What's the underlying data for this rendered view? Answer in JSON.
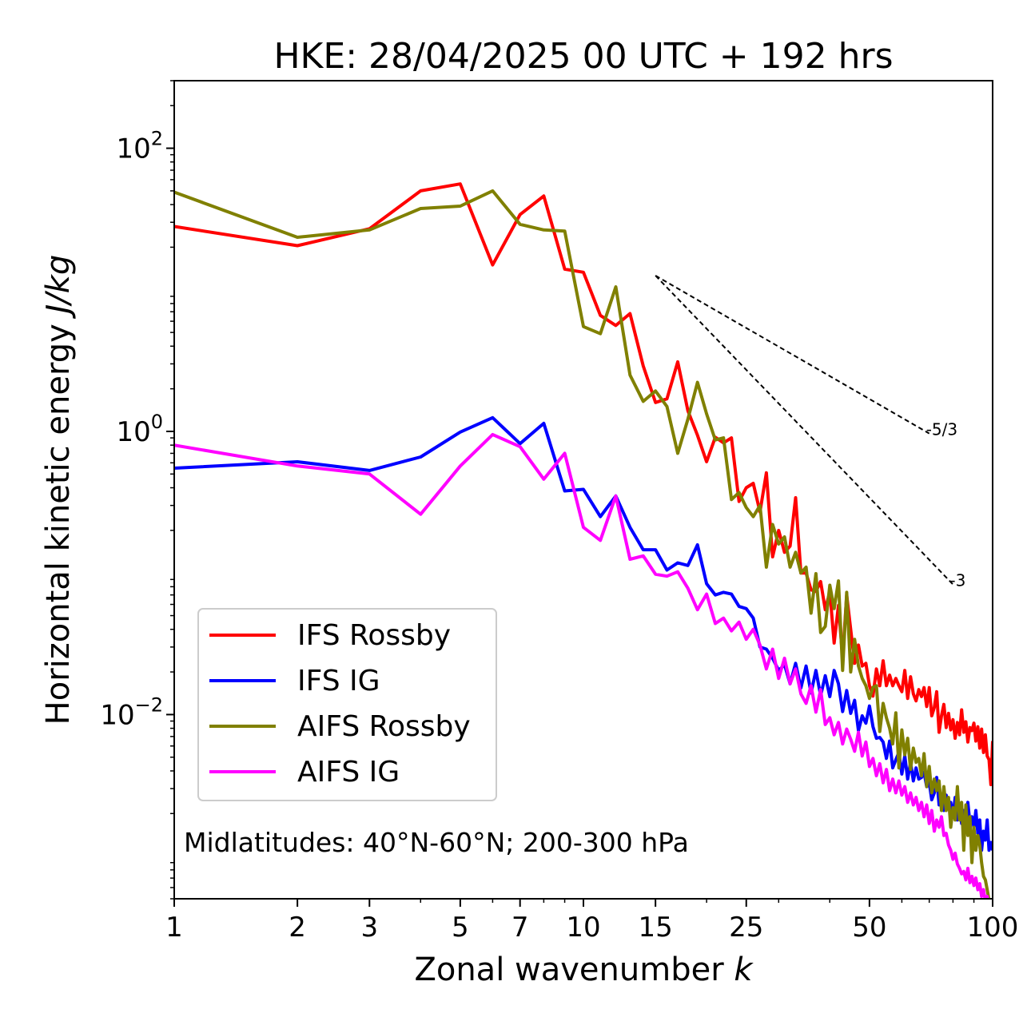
{
  "chart_data": {
    "type": "line",
    "title": "HKE: 28/04/2025 00 UTC + 192 hrs",
    "xlabel": "Zonal wavenumber",
    "xlabel_italic": "k",
    "ylabel": "Horizontal kinetic energy",
    "ylabel_italic": "J/kg",
    "xscale": "log",
    "yscale": "log",
    "xlim": [
      1,
      100
    ],
    "ylim": [
      0.0005,
      300
    ],
    "x_ticks": [
      1,
      2,
      3,
      5,
      7,
      10,
      15,
      25,
      50,
      100
    ],
    "x_tick_labels": [
      "1",
      "2",
      "3",
      "5",
      "7",
      "10",
      "15",
      "25",
      "50",
      "100"
    ],
    "y_ticks": [
      {
        "value": 100,
        "base": "10",
        "exp": "2"
      },
      {
        "value": 1,
        "base": "10",
        "exp": "0"
      },
      {
        "value": 0.01,
        "base": "10",
        "exp": "−2"
      }
    ],
    "grid": false,
    "legend_position": "lower-left",
    "annotation": "Midlatitudes: 40°N-60°N; 200-300 hPa",
    "reference_lines": [
      {
        "label": "-5/3",
        "slope": -1.6667,
        "x": [
          15,
          70
        ],
        "y_start": 12.6
      },
      {
        "label": "-3",
        "slope": -3,
        "x": [
          15,
          80
        ],
        "y_start": 12.6
      }
    ],
    "series": [
      {
        "name": "IFS Rossby",
        "color": "#ff0000",
        "x": [
          1,
          2,
          3,
          4,
          5,
          6,
          7,
          8,
          9,
          10,
          11,
          12,
          13,
          14,
          15,
          16,
          17,
          18,
          19,
          20,
          21,
          22,
          23,
          24,
          25,
          26,
          27,
          28,
          29,
          30,
          31,
          32,
          33,
          34,
          35,
          36,
          37,
          38,
          39,
          40,
          41,
          42,
          43,
          44,
          45,
          46,
          47,
          48,
          49,
          50,
          51,
          52,
          53,
          54,
          55,
          56,
          57,
          58,
          59,
          60,
          61,
          62,
          63,
          64,
          65,
          66,
          67,
          68,
          69,
          70,
          71,
          72,
          73,
          74,
          75,
          76,
          77,
          78,
          79,
          80,
          81,
          82,
          83,
          84,
          85,
          86,
          87,
          88,
          89,
          90,
          91,
          92,
          93,
          94,
          95,
          96,
          97,
          98,
          99,
          100
        ],
        "y": [
          28,
          20.5,
          27,
          50,
          56,
          15,
          34,
          46,
          14,
          13.3,
          6.6,
          5.6,
          6.8,
          2.9,
          1.6,
          1.7,
          3.1,
          1.4,
          0.94,
          0.61,
          0.91,
          0.83,
          0.9,
          0.32,
          0.4,
          0.43,
          0.27,
          0.51,
          0.13,
          0.2,
          0.14,
          0.155,
          0.34,
          0.1,
          0.1,
          0.076,
          0.074,
          0.087,
          0.055,
          0.074,
          0.032,
          0.059,
          0.025,
          0.07,
          0.04,
          0.023,
          0.031,
          0.022,
          0.023,
          0.016,
          0.0135,
          0.021,
          0.016,
          0.024,
          0.016,
          0.019,
          0.016,
          0.018,
          0.016,
          0.0145,
          0.0205,
          0.013,
          0.0185,
          0.014,
          0.0125,
          0.015,
          0.0134,
          0.0155,
          0.0114,
          0.0155,
          0.0098,
          0.0112,
          0.0145,
          0.0075,
          0.0098,
          0.0118,
          0.0081,
          0.0102,
          0.0078,
          0.0092,
          0.0068,
          0.0088,
          0.0072,
          0.0108,
          0.0075,
          0.0089,
          0.0064,
          0.0081,
          0.0077,
          0.0087,
          0.0065,
          0.0082,
          0.0058,
          0.0079,
          0.0054,
          0.0072,
          0.0051,
          0.0048,
          0.0032,
          0.0065
        ]
      },
      {
        "name": "IFS IG",
        "color": "#0000ff",
        "x": [
          1,
          2,
          3,
          4,
          5,
          6,
          7,
          8,
          9,
          10,
          11,
          12,
          13,
          14,
          15,
          16,
          17,
          18,
          19,
          20,
          21,
          22,
          23,
          24,
          25,
          26,
          27,
          28,
          29,
          30,
          31,
          32,
          33,
          34,
          35,
          36,
          37,
          38,
          39,
          40,
          41,
          42,
          43,
          44,
          45,
          46,
          47,
          48,
          49,
          50,
          51,
          52,
          53,
          54,
          55,
          56,
          57,
          58,
          59,
          60,
          61,
          62,
          63,
          64,
          65,
          66,
          67,
          68,
          69,
          70,
          71,
          72,
          73,
          74,
          75,
          76,
          77,
          78,
          79,
          80,
          81,
          82,
          83,
          84,
          85,
          86,
          87,
          88,
          89,
          90,
          91,
          92,
          93,
          94,
          95,
          96,
          97,
          98,
          99,
          100
        ],
        "y": [
          0.55,
          0.61,
          0.53,
          0.66,
          0.99,
          1.25,
          0.82,
          1.14,
          0.38,
          0.39,
          0.25,
          0.35,
          0.21,
          0.146,
          0.146,
          0.105,
          0.118,
          0.113,
          0.158,
          0.084,
          0.07,
          0.073,
          0.071,
          0.058,
          0.056,
          0.048,
          0.03,
          0.029,
          0.025,
          0.0205,
          0.0225,
          0.0165,
          0.023,
          0.0154,
          0.022,
          0.0142,
          0.0205,
          0.0136,
          0.0188,
          0.0134,
          0.0205,
          0.0165,
          0.0105,
          0.0148,
          0.0102,
          0.0126,
          0.0077,
          0.0098,
          0.0087,
          0.0115,
          0.0082,
          0.0068,
          0.0069,
          0.0064,
          0.0049,
          0.0065,
          0.0042,
          0.0048,
          0.0054,
          0.0038,
          0.0051,
          0.0035,
          0.0046,
          0.0034,
          0.0042,
          0.0035,
          0.0036,
          0.0039,
          0.0031,
          0.0033,
          0.0025,
          0.0028,
          0.0036,
          0.0023,
          0.0026,
          0.0021,
          0.0027,
          0.0022,
          0.0024,
          0.0019,
          0.0026,
          0.0018,
          0.0023,
          0.0017,
          0.0021,
          0.0019,
          0.0024,
          0.0017,
          0.0019,
          0.0016,
          0.0021,
          0.00145,
          0.0018,
          0.0011,
          0.0015,
          0.0013,
          0.0018,
          0.0011,
          0.00125,
          0.0011
        ]
      },
      {
        "name": "AIFS Rossby",
        "color": "#808000",
        "x": [
          1,
          2,
          3,
          4,
          5,
          6,
          7,
          8,
          9,
          10,
          11,
          12,
          13,
          14,
          15,
          16,
          17,
          18,
          19,
          20,
          21,
          22,
          23,
          24,
          25,
          26,
          27,
          28,
          29,
          30,
          31,
          32,
          33,
          34,
          35,
          36,
          37,
          38,
          39,
          40,
          41,
          42,
          43,
          44,
          45,
          46,
          47,
          48,
          49,
          50,
          51,
          52,
          53,
          54,
          55,
          56,
          57,
          58,
          59,
          60,
          61,
          62,
          63,
          64,
          65,
          66,
          67,
          68,
          69,
          70,
          71,
          72,
          73,
          74,
          75,
          76,
          77,
          78,
          79,
          80,
          81,
          82,
          83,
          84,
          85,
          86,
          87,
          88,
          89,
          90,
          91,
          92,
          93,
          94,
          95,
          96,
          97,
          98,
          99,
          100
        ],
        "y": [
          49,
          23.5,
          26.5,
          37.5,
          39,
          50,
          29,
          26.5,
          26,
          5.5,
          4.9,
          10.5,
          2.5,
          1.63,
          1.93,
          1.5,
          0.7,
          1.22,
          2.22,
          1.33,
          0.87,
          0.9,
          0.33,
          0.37,
          0.29,
          0.25,
          0.3,
          0.11,
          0.22,
          0.16,
          0.18,
          0.11,
          0.14,
          0.1,
          0.11,
          0.052,
          0.099,
          0.038,
          0.042,
          0.082,
          0.056,
          0.088,
          0.0205,
          0.073,
          0.02,
          0.034,
          0.022,
          0.018,
          0.016,
          0.013,
          0.0156,
          0.016,
          0.0076,
          0.012,
          0.0095,
          0.008,
          0.0062,
          0.0103,
          0.0042,
          0.0078,
          0.0052,
          0.0068,
          0.0041,
          0.0058,
          0.0046,
          0.0049,
          0.0037,
          0.0053,
          0.0031,
          0.0043,
          0.0028,
          0.0035,
          0.0029,
          0.0034,
          0.0021,
          0.0031,
          0.0021,
          0.0026,
          0.0016,
          0.0022,
          0.0018,
          0.0031,
          0.0018,
          0.0024,
          0.0011,
          0.0023,
          0.0014,
          0.0019,
          0.0009,
          0.0016,
          0.0011,
          0.0014,
          0.0012,
          0.0009,
          0.00072,
          0.00068,
          0.00058,
          0.00049,
          0.00042,
          0.00038
        ]
      },
      {
        "name": "AIFS IG",
        "color": "#ff00ff",
        "x": [
          1,
          2,
          3,
          4,
          5,
          6,
          7,
          8,
          9,
          10,
          11,
          12,
          13,
          14,
          15,
          16,
          17,
          18,
          19,
          20,
          21,
          22,
          23,
          24,
          25,
          26,
          27,
          28,
          29,
          30,
          31,
          32,
          33,
          34,
          35,
          36,
          37,
          38,
          39,
          40,
          41,
          42,
          43,
          44,
          45,
          46,
          47,
          48,
          49,
          50,
          51,
          52,
          53,
          54,
          55,
          56,
          57,
          58,
          59,
          60,
          61,
          62,
          63,
          64,
          65,
          66,
          67,
          68,
          69,
          70,
          71,
          72,
          73,
          74,
          75,
          76,
          77,
          78,
          79,
          80,
          81,
          82,
          83,
          84,
          85,
          86,
          87,
          88,
          89,
          90,
          91,
          92,
          93,
          94,
          95,
          96,
          97,
          98,
          99,
          100
        ],
        "y": [
          0.8,
          0.57,
          0.5,
          0.26,
          0.57,
          0.95,
          0.78,
          0.46,
          0.7,
          0.21,
          0.17,
          0.35,
          0.125,
          0.132,
          0.098,
          0.095,
          0.102,
          0.078,
          0.055,
          0.071,
          0.044,
          0.048,
          0.039,
          0.045,
          0.034,
          0.04,
          0.031,
          0.021,
          0.029,
          0.018,
          0.025,
          0.0165,
          0.021,
          0.014,
          0.012,
          0.016,
          0.0104,
          0.015,
          0.0085,
          0.0095,
          0.0072,
          0.0088,
          0.0062,
          0.0079,
          0.0067,
          0.0055,
          0.0075,
          0.0051,
          0.0064,
          0.0043,
          0.0049,
          0.0037,
          0.0045,
          0.0033,
          0.0041,
          0.0029,
          0.0035,
          0.0028,
          0.0034,
          0.0027,
          0.0031,
          0.0024,
          0.0028,
          0.0023,
          0.0026,
          0.0021,
          0.0024,
          0.0019,
          0.0023,
          0.0017,
          0.0021,
          0.0015,
          0.0018,
          0.0016,
          0.0019,
          0.0014,
          0.00145,
          0.0012,
          0.0011,
          0.00095,
          0.00105,
          0.00088,
          0.00082,
          0.00075,
          0.00078,
          0.00068,
          0.00082,
          0.00065,
          0.00072,
          0.00062,
          0.0007,
          0.00058,
          0.00064,
          0.00052,
          0.00058,
          0.00048,
          0.00052,
          0.00045,
          0.00047,
          0.00042
        ]
      }
    ]
  }
}
